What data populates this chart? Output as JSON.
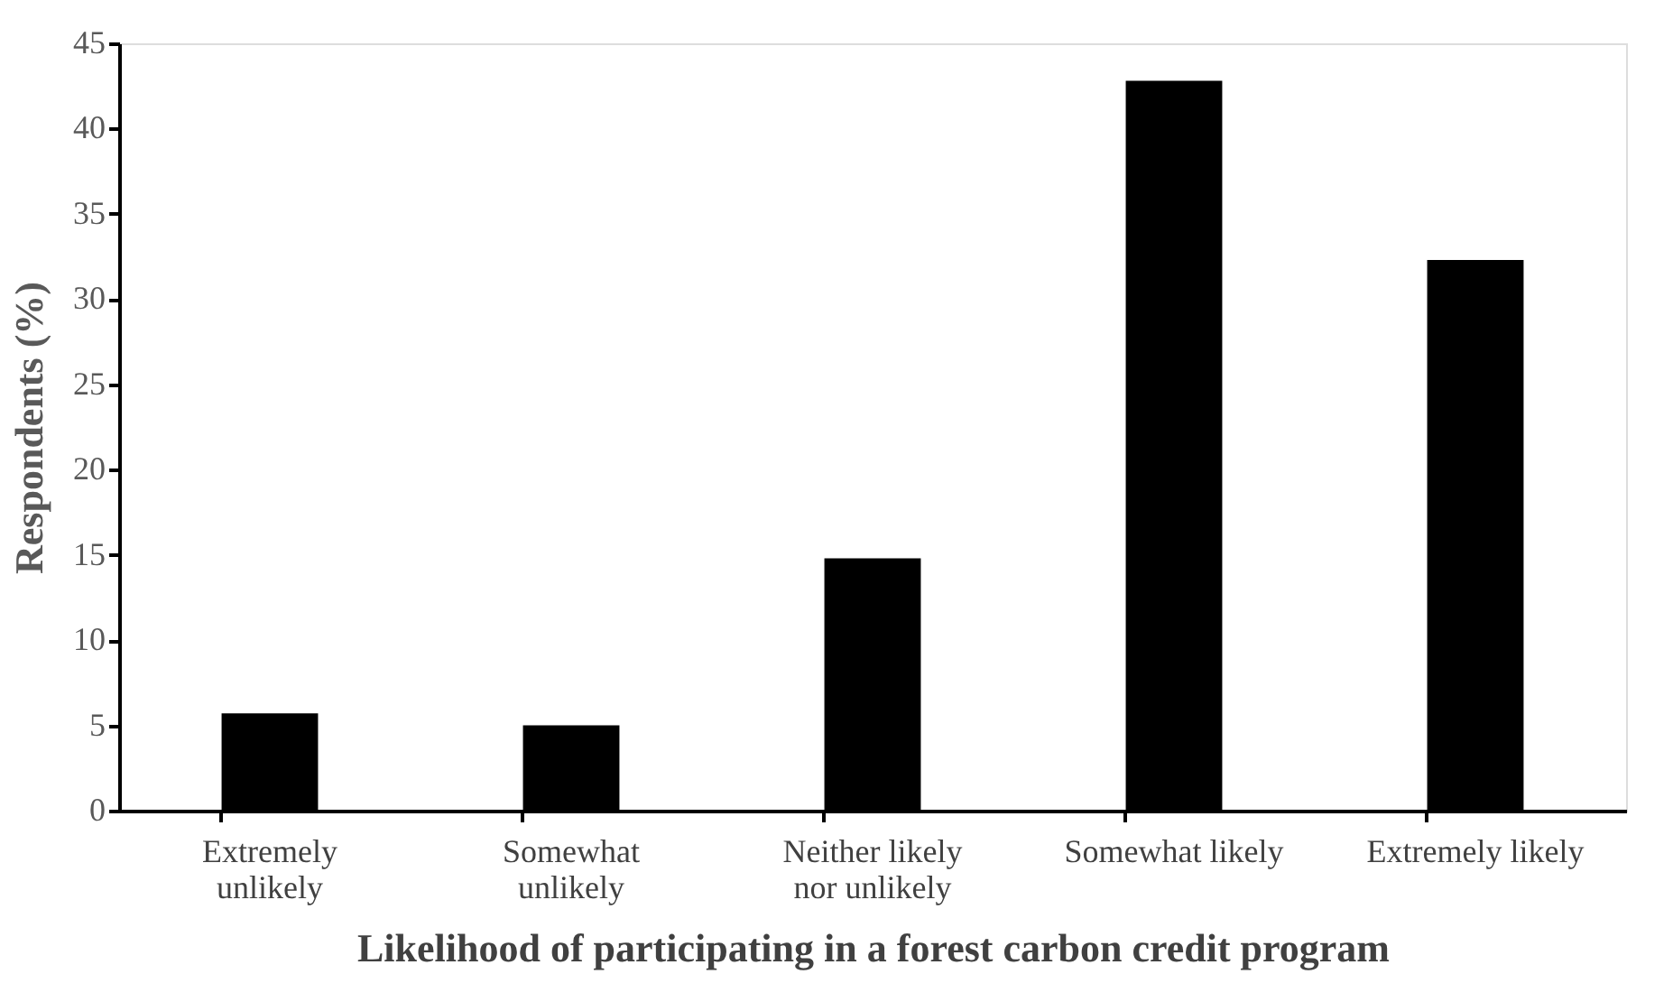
{
  "chart_data": {
    "type": "bar",
    "xlabel": "Likelihood of participating in a forest carbon credit program",
    "ylabel": "Respondents (%)",
    "categories": [
      "Extremely unlikely",
      "Somewhat unlikely",
      "Neither likely nor unlikely",
      "Somewhat likely",
      "Extremely likely"
    ],
    "values": [
      5.7,
      5.0,
      14.8,
      42.8,
      32.3
    ],
    "color": "#000000",
    "ylim": [
      0,
      45
    ],
    "yticks": [
      0,
      5,
      10,
      15,
      20,
      25,
      30,
      35,
      40,
      45
    ],
    "grid": false
  }
}
